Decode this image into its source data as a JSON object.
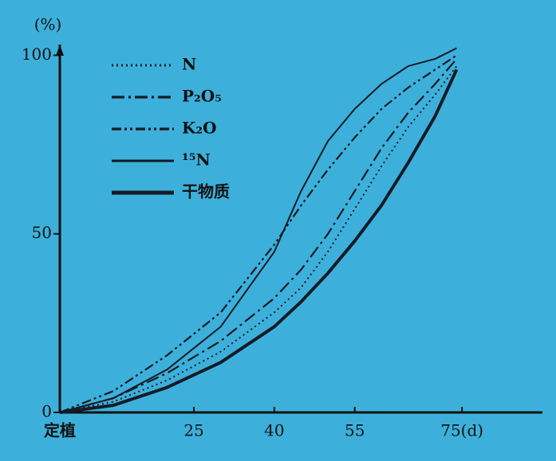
{
  "chart_data": {
    "type": "line",
    "y_label": "(%)",
    "x": [
      0,
      10,
      20,
      30,
      40,
      45,
      50,
      55,
      60,
      65,
      70,
      74
    ],
    "xlim": [
      0,
      90
    ],
    "xticks": [
      {
        "value": 0,
        "label": "定植"
      },
      25,
      40,
      55,
      {
        "value": 75,
        "label": "75(d)"
      }
    ],
    "ylim": [
      0,
      103
    ],
    "yticks": [
      0,
      50,
      100
    ],
    "series": [
      {
        "name": "N",
        "color": "#151a26",
        "line_style": "dotted",
        "values": [
          0,
          3,
          9,
          17,
          28,
          35,
          45,
          57,
          69,
          80,
          89,
          97
        ]
      },
      {
        "name": "P₂O₅",
        "color": "#151a26",
        "line_style": "dash-dot",
        "values": [
          0,
          4,
          11,
          20,
          32,
          40,
          50,
          62,
          74,
          84,
          92,
          99
        ]
      },
      {
        "name": "K₂O",
        "color": "#151a26",
        "line_style": "dash-dot-dot",
        "values": [
          0,
          6,
          16,
          28,
          47,
          58,
          68,
          77,
          85,
          91,
          96,
          100
        ]
      },
      {
        "name": "¹⁵N",
        "color": "#151a26",
        "line_style": "solid",
        "values": [
          0,
          4,
          12,
          24,
          45,
          62,
          76,
          85,
          92,
          97,
          99,
          102
        ]
      },
      {
        "name": "干物质",
        "color": "#151a26",
        "line_style": "thick",
        "values": [
          0,
          2,
          7,
          14,
          24,
          31,
          39,
          48,
          58,
          70,
          83,
          96
        ]
      }
    ]
  }
}
